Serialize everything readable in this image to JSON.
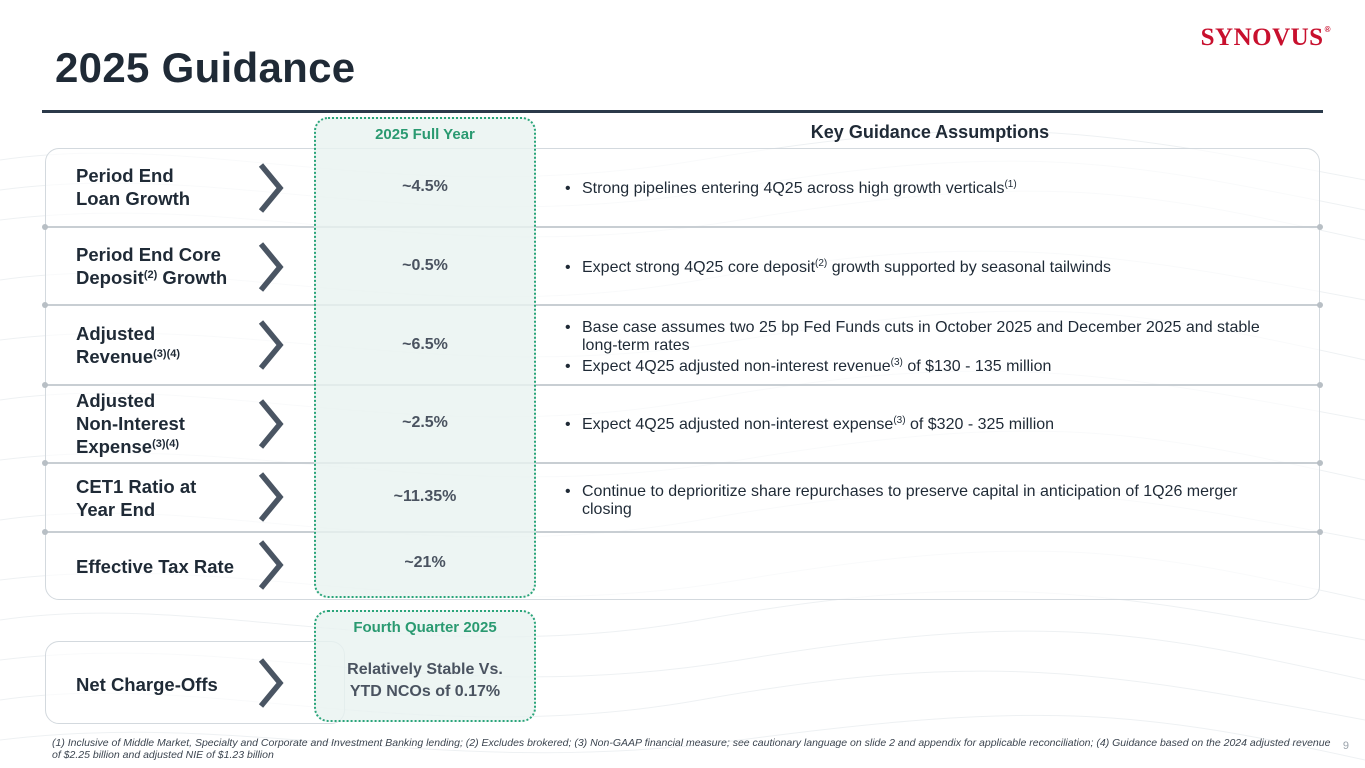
{
  "header": {
    "title": "2025 Guidance",
    "logo_text": "SYNOVUS",
    "logo_mark": "®"
  },
  "columns": {
    "full_year_header": "2025 Full Year",
    "assumptions_header": "Key Guidance Assumptions",
    "quarter_header": "Fourth Quarter 2025"
  },
  "rows": [
    {
      "label_parts": [
        "Period End",
        "Loan Growth"
      ],
      "value": "~4.5%",
      "bullet1_text": "Strong pipelines entering 4Q25 across high growth verticals",
      "bullet1_sup": "(1)"
    },
    {
      "label_line1": "Period End Core",
      "label_line2_pre": "Deposit",
      "label_line2_sup": "(2)",
      "label_line2_post": " Growth",
      "value": "~0.5%",
      "bullet1_pre": "Expect strong 4Q25 core deposit",
      "bullet1_sup": "(2)",
      "bullet1_post": " growth supported by seasonal tailwinds"
    },
    {
      "label_line1": "Adjusted",
      "label_line2": "Revenue",
      "label_sup": "(3)(4)",
      "value": "~6.5%",
      "bullet1_text": "Base case assumes two 25 bp Fed Funds cuts in October 2025 and December 2025 and stable long-term rates",
      "bullet2_pre": "Expect 4Q25 adjusted non-interest revenue",
      "bullet2_sup": "(3)",
      "bullet2_post": " of $130 - 135 million"
    },
    {
      "label_line1": "Adjusted",
      "label_line2": "Non-Interest",
      "label_line3": "Expense",
      "label_sup": "(3)(4)",
      "value": "~2.5%",
      "bullet1_pre": "Expect 4Q25 adjusted non-interest expense",
      "bullet1_sup": "(3)",
      "bullet1_post": " of $320 - 325 million"
    },
    {
      "label_line1": "CET1 Ratio at",
      "label_line2": "Year End",
      "value": "~11.35%",
      "bullet1_text": "Continue to deprioritize share repurchases to preserve capital in anticipation of 1Q26 merger closing"
    },
    {
      "label_line1": "Effective Tax Rate",
      "value": "~21%"
    }
  ],
  "ncos": {
    "label": "Net Charge-Offs",
    "value_line1": "Relatively Stable Vs.",
    "value_line2": "YTD NCOs of 0.17%"
  },
  "footnote": "(1) Inclusive of Middle Market, Specialty and Corporate and Investment Banking lending; (2) Excludes brokered; (3) Non-GAAP financial measure; see cautionary language on slide 2 and appendix for applicable reconciliation; (4) Guidance based on the 2024 adjusted revenue of $2.25 billion and adjusted NIE of $1.23 billion",
  "page_number": "9",
  "colors": {
    "accent_green": "#2a9a71",
    "brand_red": "#c8102e",
    "text_dark": "#1f2a36"
  },
  "icons": [
    "chevron-right-icon"
  ]
}
